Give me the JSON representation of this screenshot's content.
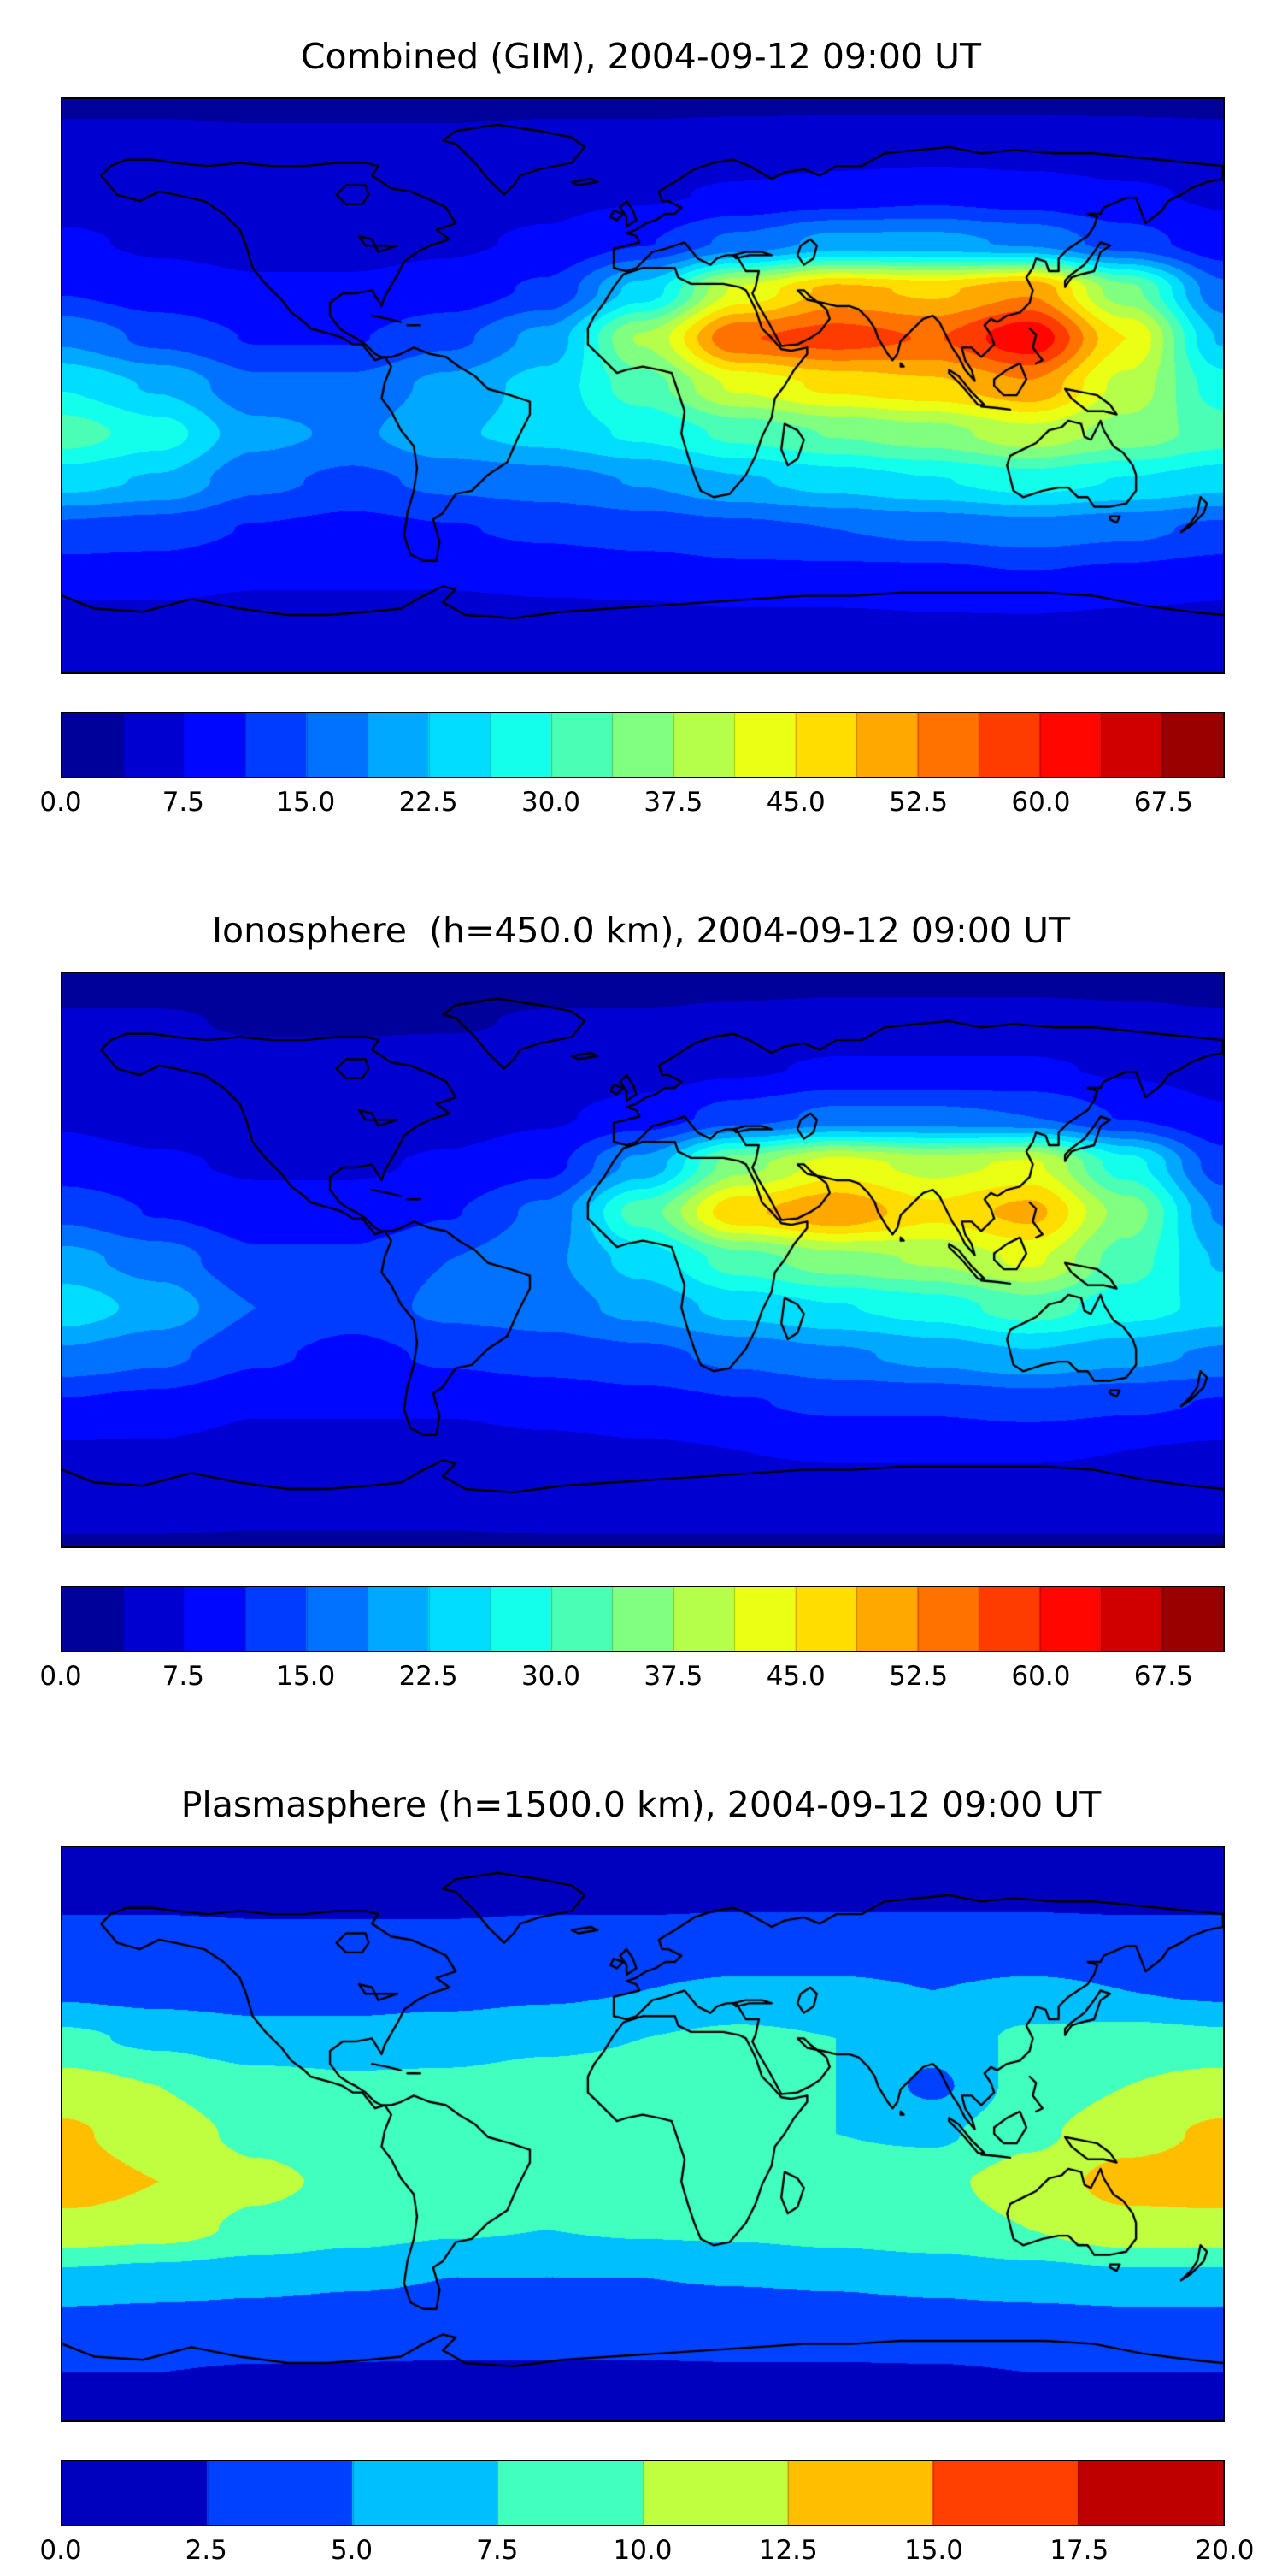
{
  "page": {
    "background": "#ffffff"
  },
  "chart_data": [
    {
      "type": "heatmap",
      "title": "Combined (GIM), 2004-09-12 09:00 UT",
      "colormap": "jet",
      "projection": "equirectangular",
      "xlim": [
        -180,
        180
      ],
      "ylim": [
        -90,
        90
      ],
      "lon": [
        -180,
        -150,
        -120,
        -90,
        -60,
        -30,
        0,
        30,
        60,
        90,
        120,
        150,
        180
      ],
      "lat": [
        90,
        75,
        60,
        45,
        30,
        15,
        0,
        -15,
        -30,
        -45,
        -60,
        -75,
        -90
      ],
      "values": [
        [
          3,
          3,
          3,
          3,
          3,
          3,
          3,
          3,
          3,
          3,
          3,
          3,
          3
        ],
        [
          5,
          5,
          4.5,
          4.5,
          4.5,
          5,
          5,
          5.5,
          6,
          6,
          6,
          5.5,
          5
        ],
        [
          6,
          6,
          5.5,
          5.5,
          6,
          6.5,
          7,
          8,
          9,
          10,
          9,
          8,
          7
        ],
        [
          8,
          7,
          6.5,
          6.5,
          7,
          8,
          11,
          16,
          20,
          20,
          18,
          13,
          9
        ],
        [
          11,
          9,
          8,
          8,
          9,
          12,
          24,
          42,
          50,
          48,
          52,
          35,
          16
        ],
        [
          18,
          14,
          11,
          11,
          14,
          20,
          38,
          56,
          58,
          56,
          63,
          45,
          22
        ],
        [
          26,
          22,
          16,
          16,
          20,
          24,
          32,
          42,
          46,
          48,
          52,
          40,
          28
        ],
        [
          32,
          28,
          20,
          18,
          22,
          24,
          27,
          31,
          34,
          36,
          40,
          36,
          32
        ],
        [
          24,
          22,
          16,
          14,
          16,
          17,
          19,
          22,
          24,
          26,
          28,
          26,
          24
        ],
        [
          14,
          13,
          11,
          10,
          11,
          12,
          13,
          14,
          15,
          16,
          17,
          16,
          14
        ],
        [
          9,
          9,
          8,
          8,
          8,
          8.5,
          9,
          10,
          10,
          10,
          11,
          10,
          9
        ],
        [
          6,
          6,
          5.5,
          5.5,
          5.5,
          6,
          6,
          6.5,
          6.5,
          7,
          7,
          6.5,
          6
        ],
        [
          4,
          4,
          4,
          4,
          4,
          4,
          4,
          4,
          4,
          4,
          4,
          4,
          4
        ]
      ],
      "colorbar": {
        "vmin": 0,
        "vmax": 71.25,
        "n_levels": 19,
        "tick_labels": [
          "0.0",
          "7.5",
          "15.0",
          "22.5",
          "30.0",
          "37.5",
          "45.0",
          "52.5",
          "60.0",
          "67.5"
        ]
      }
    },
    {
      "type": "heatmap",
      "title": "Ionosphere  (h=450.0 km), 2004-09-12 09:00 UT",
      "colormap": "jet",
      "projection": "equirectangular",
      "xlim": [
        -180,
        180
      ],
      "ylim": [
        -90,
        90
      ],
      "lon": [
        -180,
        -150,
        -120,
        -90,
        -60,
        -30,
        0,
        30,
        60,
        90,
        120,
        150,
        180
      ],
      "lat": [
        90,
        75,
        60,
        45,
        30,
        15,
        0,
        -15,
        -30,
        -45,
        -60,
        -75,
        -90
      ],
      "values": [
        [
          2.5,
          2.5,
          2.5,
          2.5,
          2.5,
          2.5,
          2.5,
          2.5,
          2.5,
          2.5,
          2.5,
          2.5,
          2.5
        ],
        [
          4,
          4,
          3.5,
          3.5,
          3.5,
          4,
          4,
          4.5,
          5,
          5,
          5,
          4.5,
          4
        ],
        [
          5,
          5,
          4.5,
          4.5,
          5,
          5,
          6,
          7,
          8,
          8,
          8,
          7,
          6
        ],
        [
          7,
          6,
          5.5,
          5.5,
          6,
          7,
          9,
          13,
          16,
          16,
          15,
          11,
          8
        ],
        [
          9,
          8,
          7,
          7,
          8,
          10,
          20,
          36,
          43,
          40,
          42,
          28,
          13
        ],
        [
          14,
          11,
          9,
          9,
          11,
          16,
          32,
          48,
          52,
          46,
          50,
          36,
          18
        ],
        [
          20,
          17,
          12,
          12,
          15,
          18,
          24,
          32,
          36,
          38,
          42,
          32,
          22
        ],
        [
          25,
          21,
          15,
          13,
          16,
          17,
          20,
          24,
          26,
          28,
          32,
          28,
          25
        ],
        [
          18,
          16,
          12,
          10,
          12,
          13,
          14,
          16,
          18,
          20,
          22,
          20,
          18
        ],
        [
          11,
          10,
          8,
          8,
          8,
          9,
          10,
          11,
          12,
          12,
          13,
          12,
          11
        ],
        [
          7,
          7,
          6,
          6,
          6,
          6.5,
          7,
          7.5,
          8,
          8,
          8,
          7.5,
          7
        ],
        [
          5,
          5,
          4.5,
          4.5,
          4.5,
          5,
          5,
          5,
          5,
          5,
          5,
          5,
          5
        ],
        [
          3.5,
          3.5,
          3.5,
          3.5,
          3.5,
          3.5,
          3.5,
          3.5,
          3.5,
          3.5,
          3.5,
          3.5,
          3.5
        ]
      ],
      "colorbar": {
        "vmin": 0,
        "vmax": 71.25,
        "n_levels": 19,
        "tick_labels": [
          "0.0",
          "7.5",
          "15.0",
          "22.5",
          "30.0",
          "37.5",
          "45.0",
          "52.5",
          "60.0",
          "67.5"
        ]
      }
    },
    {
      "type": "heatmap",
      "title": "Plasmasphere (h=1500.0 km), 2004-09-12 09:00 UT",
      "colormap": "jet",
      "projection": "equirectangular",
      "xlim": [
        -180,
        180
      ],
      "ylim": [
        -90,
        90
      ],
      "lon": [
        -180,
        -150,
        -120,
        -90,
        -60,
        -30,
        0,
        30,
        60,
        90,
        120,
        150,
        180
      ],
      "lat": [
        90,
        75,
        60,
        45,
        30,
        15,
        0,
        -15,
        -30,
        -45,
        -60,
        -75,
        -90
      ],
      "values": [
        [
          2,
          2,
          2,
          2,
          2,
          2,
          2,
          2,
          2,
          2,
          2,
          2,
          2
        ],
        [
          2.2,
          2.2,
          2.2,
          2.2,
          2.2,
          2.2,
          2.2,
          2.2,
          2.2,
          2.2,
          2.2,
          2.2,
          2.2
        ],
        [
          3,
          3,
          2.8,
          2.8,
          2.8,
          3,
          3,
          3.2,
          3.2,
          3.2,
          3.2,
          3,
          3
        ],
        [
          4.5,
          4,
          3.8,
          3.8,
          4,
          4.5,
          5,
          5.5,
          5.5,
          5,
          5.5,
          5,
          4.5
        ],
        [
          8,
          7,
          6,
          6,
          6.5,
          7,
          7.5,
          8,
          7.5,
          6,
          8,
          8.5,
          8
        ],
        [
          11,
          10,
          8.5,
          8,
          8,
          8.5,
          8.5,
          8.5,
          7.5,
          4.5,
          8.5,
          10,
          11
        ],
        [
          13,
          11,
          9.5,
          8.5,
          7.8,
          8,
          8,
          8,
          7.5,
          7,
          9.5,
          11.5,
          13
        ],
        [
          14,
          12.5,
          10.5,
          9.5,
          9,
          8.8,
          8.8,
          9,
          9,
          9.5,
          11,
          13.5,
          14
        ],
        [
          11.5,
          11,
          9.5,
          8.5,
          7.8,
          7.5,
          7.8,
          8,
          8.5,
          9,
          10,
          11.5,
          11.5
        ],
        [
          7,
          6.5,
          6,
          5.5,
          5,
          5,
          5,
          5.2,
          5.5,
          6,
          6.5,
          7,
          7
        ],
        [
          4,
          3.8,
          3.5,
          3.2,
          3,
          3,
          3,
          3.2,
          3.2,
          3.5,
          3.8,
          4,
          4
        ],
        [
          2.5,
          2.5,
          2.4,
          2.4,
          2.4,
          2.4,
          2.4,
          2.4,
          2.4,
          2.4,
          2.5,
          2.5,
          2.5
        ],
        [
          2,
          2,
          2,
          2,
          2,
          2,
          2,
          2,
          2,
          2,
          2,
          2,
          2
        ]
      ],
      "colorbar": {
        "vmin": 0,
        "vmax": 20,
        "n_levels": 8,
        "tick_labels": [
          "0.0",
          "2.5",
          "5.0",
          "7.5",
          "10.0",
          "12.5",
          "15.0",
          "17.5",
          "20.0"
        ]
      }
    }
  ]
}
